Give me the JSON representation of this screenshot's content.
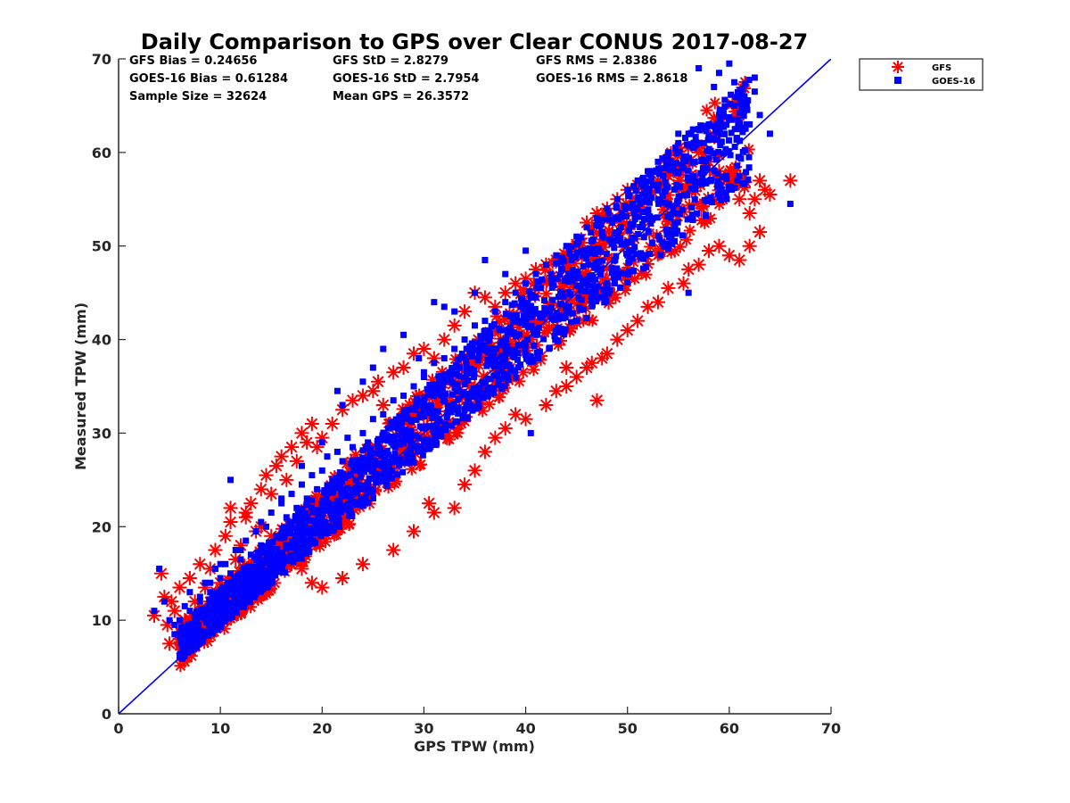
{
  "chart_data": {
    "type": "scatter",
    "title": "Daily Comparison to GPS over Clear CONUS 2017-08-27",
    "xlabel": "GPS TPW (mm)",
    "ylabel": "Measured TPW (mm)",
    "xlim": [
      0,
      70
    ],
    "ylim": [
      0,
      70
    ],
    "xticks": [
      "0",
      "10",
      "20",
      "30",
      "40",
      "50",
      "60",
      "70"
    ],
    "yticks": [
      "0",
      "10",
      "20",
      "30",
      "40",
      "50",
      "60",
      "70"
    ],
    "grid": false,
    "legend_position": "outside-top-right",
    "reference_line": {
      "name": "1:1 line",
      "x": [
        0,
        70
      ],
      "y": [
        0,
        70
      ],
      "color": "#0000ee"
    },
    "stats": {
      "gfs_bias": "GFS Bias = 0.24656",
      "goes_bias": "GOES-16 Bias = 0.61284",
      "sample_size": "Sample Size = 32624",
      "gfs_std": "GFS StD = 2.8279",
      "goes_std": "GOES-16 StD = 2.7954",
      "mean_gps": "Mean GPS = 26.3572",
      "gfs_rms": "GFS RMS = 2.8386",
      "goes_rms": "GOES-16 RMS = 2.8618"
    },
    "series": [
      {
        "name": "GFS",
        "marker": "asterisk",
        "color": "#ff0000",
        "x": [
          3.5,
          4.2,
          4.5,
          4.8,
          5.2,
          5.5,
          6.0,
          6.5,
          7.0,
          7.5,
          8.0,
          8.5,
          9.0,
          9.5,
          10.0,
          10.5,
          11.0,
          11.5,
          12.0,
          12.5,
          13.0,
          13.5,
          14.0,
          14.5,
          15.0,
          15.5,
          16.0,
          16.5,
          17.0,
          17.5,
          18.0,
          18.5,
          19.0,
          19.5,
          20.0,
          21.0,
          22.0,
          23.0,
          24.0,
          25.0,
          25.5,
          26.0,
          27.0,
          28.0,
          29.0,
          30.0,
          31.0,
          32.0,
          33.0,
          34.0,
          35.0,
          36.0,
          37.0,
          38.0,
          39.0,
          40.0,
          41.0,
          42.0,
          43.0,
          44.0,
          45.0,
          46.0,
          47.0,
          48.0,
          49.0,
          50.0,
          51.0,
          52.0,
          53.0,
          54.0,
          55.0,
          55.5,
          56.0,
          57.0,
          58.0,
          59.0,
          60.0,
          60.5,
          61.0,
          62.0,
          62.5,
          63.0,
          63.5,
          64.0,
          66.0,
          11.0,
          12.5,
          14.0,
          15.0,
          16.0,
          17.0,
          18.0,
          19.0,
          20.0,
          22.0,
          24.0,
          27.0,
          29.0,
          30.5,
          31.0,
          33.0,
          34.0,
          35.0,
          36.0,
          37.0,
          38.0,
          39.0,
          40.0,
          42.0,
          43.0,
          44.0,
          45.0,
          46.0,
          46.5,
          47.5,
          48.0,
          49.0,
          50.0,
          51.0,
          52.0,
          53.0,
          54.0,
          55.5,
          56.0,
          57.0,
          58.0,
          59.0,
          60.0,
          61.0,
          62.0,
          63.0,
          47.0,
          44.0,
          41.0,
          38.5,
          35.0,
          30.0,
          27.0,
          22.0,
          20.0,
          17.5,
          15.0,
          13.0,
          12.0,
          10.5,
          9.0,
          8.0,
          7.0,
          6.0,
          5.0
        ],
        "y": [
          10.5,
          15.0,
          12.5,
          9.5,
          12.0,
          11.0,
          13.5,
          10.0,
          14.5,
          12.0,
          16.0,
          13.5,
          15.5,
          17.5,
          14.0,
          19.0,
          20.5,
          16.5,
          18.0,
          21.0,
          22.5,
          19.5,
          24.0,
          25.5,
          23.5,
          26.5,
          27.5,
          25.0,
          28.5,
          27.0,
          30.0,
          29.0,
          31.0,
          28.5,
          29.5,
          31.0,
          32.5,
          33.5,
          34.0,
          34.5,
          35.5,
          33.0,
          36.5,
          37.0,
          38.5,
          39.0,
          38.0,
          40.0,
          41.5,
          43.0,
          45.0,
          44.5,
          43.5,
          45.0,
          46.0,
          46.5,
          47.5,
          48.0,
          48.5,
          49.0,
          50.0,
          52.5,
          53.5,
          54.0,
          55.0,
          56.0,
          56.5,
          55.5,
          57.0,
          57.5,
          58.0,
          58.5,
          59.0,
          60.0,
          59.0,
          58.0,
          57.5,
          56.5,
          55.0,
          53.5,
          55.0,
          57.0,
          56.0,
          55.5,
          57.0,
          22.0,
          21.5,
          20.0,
          19.0,
          17.5,
          16.0,
          15.5,
          14.0,
          13.5,
          14.5,
          16.0,
          17.5,
          19.5,
          22.5,
          21.5,
          22.0,
          24.5,
          26.0,
          28.0,
          29.5,
          30.5,
          32.0,
          31.5,
          33.0,
          34.5,
          35.0,
          36.0,
          37.0,
          37.5,
          38.0,
          38.5,
          40.0,
          41.0,
          42.0,
          43.5,
          44.0,
          45.5,
          46.0,
          47.5,
          48.0,
          49.5,
          50.0,
          49.0,
          48.5,
          50.0,
          51.5,
          33.5,
          37.0,
          38.0,
          39.5,
          35.0,
          30.5,
          25.5,
          23.0,
          21.0,
          18.5,
          16.5,
          14.5,
          12.5,
          11.0,
          9.5,
          9.0,
          8.5,
          8.0,
          7.5
        ]
      },
      {
        "name": "GOES-16",
        "marker": "square",
        "color": "#0000ff",
        "x": [
          3.5,
          4.0,
          4.5,
          5.0,
          5.5,
          6.0,
          6.5,
          7.0,
          7.5,
          8.0,
          8.5,
          9.0,
          9.5,
          10.0,
          10.5,
          11.0,
          11.5,
          12.0,
          12.5,
          13.0,
          13.5,
          14.0,
          14.5,
          15.0,
          15.5,
          16.0,
          16.5,
          17.0,
          17.5,
          18.0,
          18.5,
          19.0,
          19.5,
          20.0,
          20.5,
          21.0,
          21.5,
          22.0,
          22.5,
          23.0,
          23.5,
          24.0,
          24.5,
          25.0,
          25.5,
          26.0,
          26.5,
          27.0,
          27.5,
          28.0,
          28.5,
          29.0,
          29.5,
          30.0,
          30.5,
          31.0,
          31.5,
          32.0,
          32.5,
          33.0,
          33.5,
          34.0,
          34.5,
          35.0,
          35.5,
          36.0,
          36.5,
          37.0,
          37.5,
          38.0,
          38.5,
          39.0,
          39.5,
          40.0,
          40.5,
          41.0,
          41.5,
          42.0,
          42.5,
          43.0,
          43.5,
          44.0,
          44.5,
          45.0,
          45.5,
          46.0,
          46.5,
          47.0,
          47.5,
          48.0,
          48.5,
          49.0,
          49.5,
          50.0,
          50.5,
          51.0,
          51.5,
          52.0,
          52.5,
          53.0,
          53.5,
          54.0,
          54.5,
          55.0,
          55.5,
          56.0,
          56.5,
          57.0,
          57.5,
          58.0,
          58.5,
          59.0,
          59.5,
          60.0,
          60.5,
          61.0,
          61.5,
          62.0,
          62.5,
          63.0,
          64.0,
          66.0,
          57.0,
          58.5,
          59.0,
          60.0,
          60.5,
          61.5,
          62.5,
          53.0,
          51.5,
          50.0,
          48.0,
          47.0,
          45.0,
          42.5,
          41.0,
          40.0,
          38.0,
          36.0,
          35.0,
          33.0,
          31.0,
          30.0,
          28.0,
          26.0,
          24.0,
          22.0,
          20.0,
          18.0,
          16.0,
          14.0,
          12.0,
          10.0,
          9.0,
          8.0,
          7.0,
          6.0,
          5.5,
          11.0,
          21.5,
          25.0,
          29.5,
          32.0,
          40.5,
          56.0,
          55.0
        ],
        "y": [
          11.0,
          15.5,
          12.0,
          10.0,
          9.5,
          8.5,
          11.5,
          13.0,
          10.5,
          12.0,
          14.0,
          13.0,
          15.5,
          14.5,
          16.0,
          15.0,
          17.5,
          16.5,
          18.5,
          17.0,
          19.5,
          18.0,
          20.0,
          21.5,
          19.0,
          22.5,
          21.0,
          23.5,
          22.0,
          24.5,
          23.0,
          25.5,
          24.0,
          26.0,
          27.5,
          25.0,
          28.0,
          27.0,
          29.5,
          28.5,
          26.5,
          30.0,
          29.0,
          31.5,
          28.0,
          32.0,
          30.5,
          33.5,
          31.0,
          34.0,
          32.5,
          35.0,
          33.0,
          36.0,
          34.5,
          37.5,
          35.5,
          38.0,
          36.5,
          39.0,
          37.0,
          40.0,
          38.5,
          41.5,
          39.5,
          42.0,
          40.5,
          43.0,
          41.0,
          44.0,
          42.5,
          45.0,
          43.5,
          46.0,
          44.5,
          47.0,
          45.5,
          48.0,
          46.5,
          49.0,
          47.5,
          50.0,
          48.5,
          51.0,
          49.5,
          52.0,
          50.5,
          53.0,
          51.5,
          54.0,
          52.5,
          55.0,
          53.5,
          56.0,
          54.5,
          57.0,
          55.5,
          58.0,
          56.5,
          59.0,
          57.5,
          60.0,
          58.5,
          61.0,
          59.5,
          62.0,
          60.5,
          62.5,
          61.0,
          63.0,
          61.5,
          64.0,
          62.0,
          63.5,
          65.0,
          62.5,
          64.5,
          63.0,
          66.5,
          64.0,
          62.0,
          54.5,
          69.0,
          67.0,
          68.5,
          69.5,
          67.5,
          66.0,
          68.0,
          55.0,
          52.0,
          49.0,
          46.0,
          48.0,
          42.0,
          47.0,
          44.5,
          49.5,
          47.0,
          48.5,
          45.0,
          43.0,
          44.0,
          36.5,
          40.5,
          39.0,
          35.5,
          33.0,
          29.0,
          26.5,
          23.0,
          20.5,
          17.5,
          16.0,
          14.0,
          12.5,
          11.0,
          10.0,
          8.5,
          25.0,
          34.5,
          37.0,
          38.0,
          43.5,
          30.0,
          45.0,
          62.0
        ]
      }
    ]
  }
}
